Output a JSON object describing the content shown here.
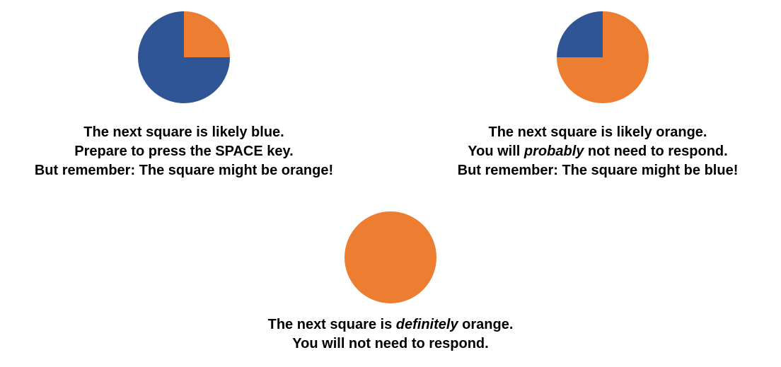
{
  "colors": {
    "blue": "#2F5597",
    "orange": "#ED7D31"
  },
  "panels": [
    {
      "pie": {
        "blue_fraction": 0.75,
        "orange_fraction": 0.25
      },
      "caption": {
        "line1": "The next square is likely blue.",
        "line2": "Prepare to press the SPACE key.",
        "line3": "But remember: The square might be orange!"
      }
    },
    {
      "pie": {
        "blue_fraction": 0.25,
        "orange_fraction": 0.75
      },
      "caption": {
        "line1": "The next square is likely orange.",
        "line2_pre": "You will ",
        "line2_em": "probably",
        "line2_post": " not need to respond.",
        "line3": "But remember: The square might be blue!"
      }
    },
    {
      "pie": {
        "blue_fraction": 0.0,
        "orange_fraction": 1.0
      },
      "caption": {
        "line1_pre": "The next square is ",
        "line1_em": "definitely",
        "line1_post": " orange.",
        "line2": "You will not need to respond."
      }
    }
  ]
}
